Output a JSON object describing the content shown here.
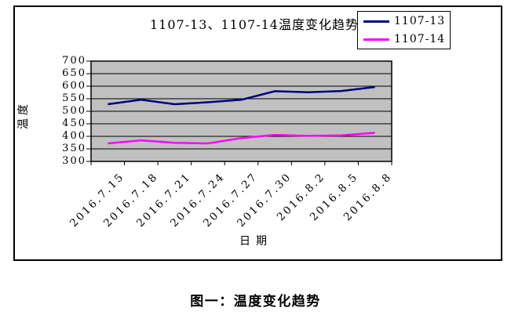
{
  "figure": {
    "caption": "图一：温度变化趋势"
  },
  "chart_data": {
    "type": "line",
    "title": "1107-13、1107-14温度变化趋势",
    "xlabel": "日期",
    "ylabel": "温度",
    "ylim": [
      300,
      700
    ],
    "ytick_step": 50,
    "yticks": [
      700,
      650,
      600,
      550,
      500,
      450,
      400,
      350,
      300
    ],
    "categories": [
      "2016.7.15",
      "2016.7.18",
      "2016.7.21",
      "2016.7.24",
      "2016.7.27",
      "2016.7.30",
      "2016.8.2",
      "2016.8.5",
      "2016.8.8"
    ],
    "series": [
      {
        "name": "1107-13",
        "color": "#000080",
        "values": [
          528,
          546,
          528,
          536,
          546,
          580,
          576,
          581,
          597
        ]
      },
      {
        "name": "1107-14",
        "color": "#FF00FF",
        "values": [
          372,
          384,
          374,
          372,
          393,
          406,
          402,
          404,
          414
        ]
      }
    ],
    "plot_bg": "#c0c0c0",
    "grid": true,
    "legend_position": "top-right"
  }
}
